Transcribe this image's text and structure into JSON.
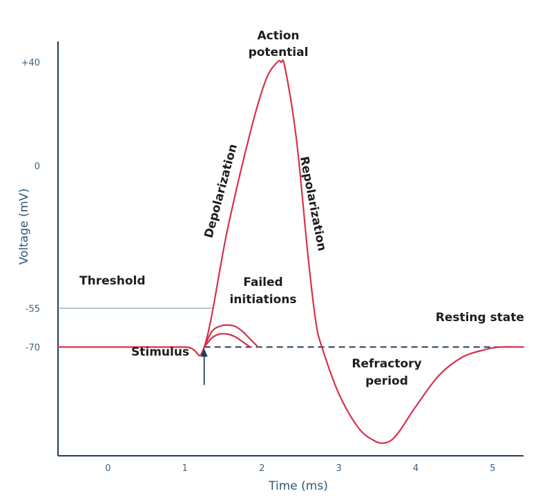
{
  "chart_data": {
    "type": "line",
    "title": "",
    "xlabel": "Time (ms)",
    "ylabel": "Voltage (mV)",
    "xlim": [
      -0.65,
      5.4
    ],
    "ylim": [
      -112,
      48
    ],
    "x_ticks": [
      "0",
      "1",
      "2",
      "3",
      "4",
      "5"
    ],
    "x_tick_values": [
      0,
      1,
      2,
      3,
      4,
      5
    ],
    "y_ticks": [
      "+40",
      "0",
      "-55",
      "-70"
    ],
    "y_tick_values": [
      40,
      0,
      -55,
      -70
    ],
    "grid": false,
    "colors": {
      "curve": "#d5304d",
      "axis": "#1f3b5a",
      "threshold_line": "#6e8aa2",
      "resting_dashed": "#1f3b5a",
      "stimulus_arrow": "#1f3b5a"
    },
    "series": [
      {
        "name": "",
        "x": [
          -0.65,
          0,
          1,
          1.25,
          1.55,
          1.85,
          2.05,
          2.2,
          2.25,
          2.3,
          2.45,
          2.6,
          2.7,
          2.78,
          3.0,
          3.25,
          3.45,
          3.6,
          3.75,
          4.0,
          4.3,
          4.6,
          4.9,
          5.1,
          5.4
        ],
        "y": [
          -70,
          -70,
          -70,
          -70,
          -25,
          13,
          33,
          40,
          40,
          38,
          10,
          -35,
          -60,
          -70,
          -88,
          -101,
          -106,
          -107,
          -104,
          -93,
          -81,
          -74,
          -71,
          -70,
          -70
        ]
      },
      {
        "name": "",
        "x": [
          1.25,
          1.35,
          1.45,
          1.55,
          1.65,
          1.75,
          1.85,
          1.95
        ],
        "y": [
          -70,
          -64,
          -62,
          -61.5,
          -62,
          -64,
          -67,
          -70
        ]
      },
      {
        "name": "",
        "x": [
          1.25,
          1.35,
          1.45,
          1.55,
          1.65,
          1.75,
          1.85
        ],
        "y": [
          -70,
          -66.5,
          -65,
          -65,
          -66,
          -68,
          -70
        ]
      }
    ],
    "threshold": {
      "y": -55,
      "x_from": -0.65,
      "x_to": 1.35
    },
    "resting_line": {
      "y": -70,
      "x_from": 1.25,
      "x_to": 5.4
    },
    "stimulus": {
      "x": 1.25
    },
    "annotations": {
      "action_potential_1": "Action",
      "action_potential_2": "potential",
      "depolarization": "Depolarization",
      "repolarization": "Repolarization",
      "threshold": "Threshold",
      "failed_1": "Failed",
      "failed_2": "initiations",
      "resting_state": "Resting state",
      "stimulus": "Stimulus",
      "refractory_1": "Refractory",
      "refractory_2": "period"
    }
  }
}
